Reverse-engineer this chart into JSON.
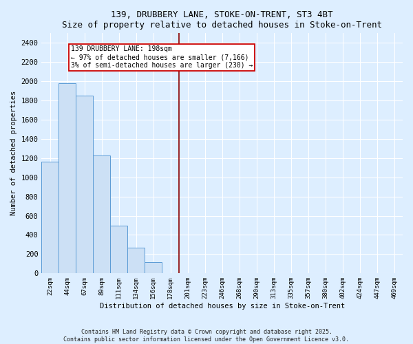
{
  "title": "139, DRUBBERY LANE, STOKE-ON-TRENT, ST3 4BT",
  "subtitle": "Size of property relative to detached houses in Stoke-on-Trent",
  "xlabel": "Distribution of detached houses by size in Stoke-on-Trent",
  "ylabel": "Number of detached properties",
  "categories": [
    "22sqm",
    "44sqm",
    "67sqm",
    "89sqm",
    "111sqm",
    "134sqm",
    "156sqm",
    "178sqm",
    "201sqm",
    "223sqm",
    "246sqm",
    "268sqm",
    "290sqm",
    "313sqm",
    "335sqm",
    "357sqm",
    "380sqm",
    "402sqm",
    "424sqm",
    "447sqm",
    "469sqm"
  ],
  "values": [
    1160,
    1980,
    1850,
    1230,
    500,
    270,
    120,
    0,
    0,
    0,
    0,
    0,
    0,
    0,
    0,
    0,
    0,
    0,
    0,
    0,
    0
  ],
  "bar_color": "#cce0f5",
  "bar_edge_color": "#5b9bd5",
  "vline_color": "#8b0000",
  "vline_x": 7.5,
  "annotation_text": "139 DRUBBERY LANE: 198sqm\n← 97% of detached houses are smaller (7,166)\n3% of semi-detached houses are larger (230) →",
  "ylim": [
    0,
    2500
  ],
  "yticks": [
    0,
    200,
    400,
    600,
    800,
    1000,
    1200,
    1400,
    1600,
    1800,
    2000,
    2200,
    2400
  ],
  "fig_bg": "#ddeeff",
  "plot_bg": "#ddeeff",
  "footer_line1": "Contains HM Land Registry data © Crown copyright and database right 2025.",
  "footer_line2": "Contains public sector information licensed under the Open Government Licence v3.0."
}
